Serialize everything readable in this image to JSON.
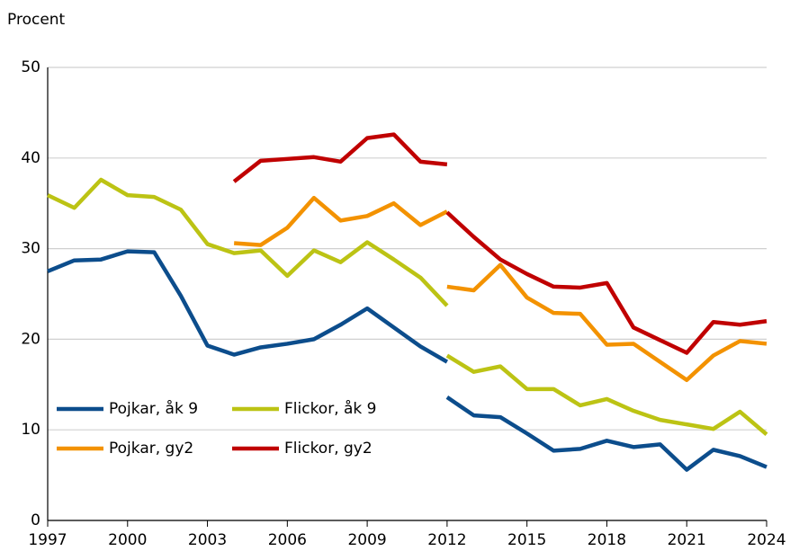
{
  "chart_data": {
    "type": "line",
    "y_label": "Procent",
    "x": [
      1997,
      1998,
      1999,
      2000,
      2001,
      2002,
      2003,
      2004,
      2005,
      2006,
      2007,
      2008,
      2009,
      2010,
      2011,
      2012,
      2012,
      2012,
      2013,
      2014,
      2015,
      2016,
      2017,
      2018,
      2019,
      2020,
      2021,
      2022,
      2023,
      2024
    ],
    "series": [
      {
        "name": "Pojkar, åk 9",
        "color": "#0c4d8c",
        "values": [
          27.5,
          28.7,
          28.8,
          29.7,
          29.6,
          24.8,
          19.3,
          18.3,
          19.1,
          19.5,
          20.0,
          21.6,
          23.4,
          21.3,
          19.2,
          17.5,
          null,
          13.6,
          11.6,
          11.4,
          9.6,
          7.7,
          7.9,
          8.8,
          8.1,
          8.4,
          5.6,
          7.8,
          7.1,
          5.9
        ]
      },
      {
        "name": "Flickor, åk 9",
        "color": "#bcc314",
        "values": [
          35.9,
          34.5,
          37.6,
          35.9,
          35.7,
          34.3,
          30.5,
          29.5,
          29.8,
          27.0,
          29.8,
          28.5,
          30.7,
          28.8,
          26.8,
          23.7,
          null,
          18.2,
          16.4,
          17.0,
          14.5,
          14.5,
          12.7,
          13.4,
          12.1,
          11.1,
          10.6,
          10.1,
          12.0,
          9.5
        ]
      },
      {
        "name": "Pojkar, gy2",
        "color": "#f39200",
        "values": [
          null,
          null,
          null,
          null,
          null,
          null,
          null,
          30.6,
          30.4,
          32.3,
          35.6,
          33.1,
          33.6,
          35.0,
          32.6,
          34.1,
          null,
          25.8,
          25.4,
          28.2,
          24.6,
          22.9,
          22.8,
          19.4,
          19.5,
          17.5,
          15.5,
          18.2,
          19.8,
          19.5
        ]
      },
      {
        "name": "Flickor, gy2",
        "color": "#c00000",
        "values": [
          null,
          null,
          null,
          null,
          null,
          null,
          null,
          37.4,
          39.7,
          39.9,
          40.1,
          39.6,
          42.2,
          42.6,
          39.6,
          39.3,
          null,
          34.0,
          31.3,
          28.8,
          27.2,
          25.8,
          25.7,
          26.2,
          21.3,
          19.9,
          18.5,
          21.9,
          21.6,
          22.0
        ]
      }
    ],
    "xlim": [
      1997,
      2024
    ],
    "xticks": [
      1997,
      2000,
      2003,
      2006,
      2009,
      2012,
      2015,
      2018,
      2021,
      2024
    ],
    "ylim": [
      0,
      50
    ],
    "yticks": [
      0,
      10,
      20,
      30,
      40,
      50
    ],
    "grid": true,
    "legend": "lower left"
  }
}
